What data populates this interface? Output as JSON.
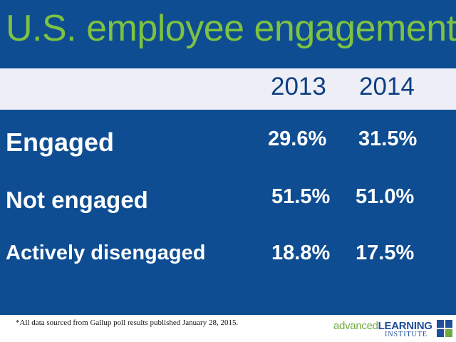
{
  "title": "U.S. employee engagement",
  "years": [
    "2013",
    "2014"
  ],
  "rows": [
    {
      "label": "Engaged",
      "v2013": "29.6%",
      "v2014": "31.5%"
    },
    {
      "label": "Not engaged",
      "v2013": "51.5%",
      "v2014": "51.0%"
    },
    {
      "label": "Actively disengaged",
      "v2013": "18.8%",
      "v2014": "17.5%"
    }
  ],
  "footnote": "*All data sourced from Gallup poll results published January 28, 2015.",
  "logo": {
    "part1": "advanced",
    "part2": "LEARNING",
    "part3": "INSTITUTE"
  },
  "colors": {
    "panel": "#0e4d92",
    "title": "#7dc242",
    "band": "#edeef6",
    "year_text": "#0e3f82"
  }
}
